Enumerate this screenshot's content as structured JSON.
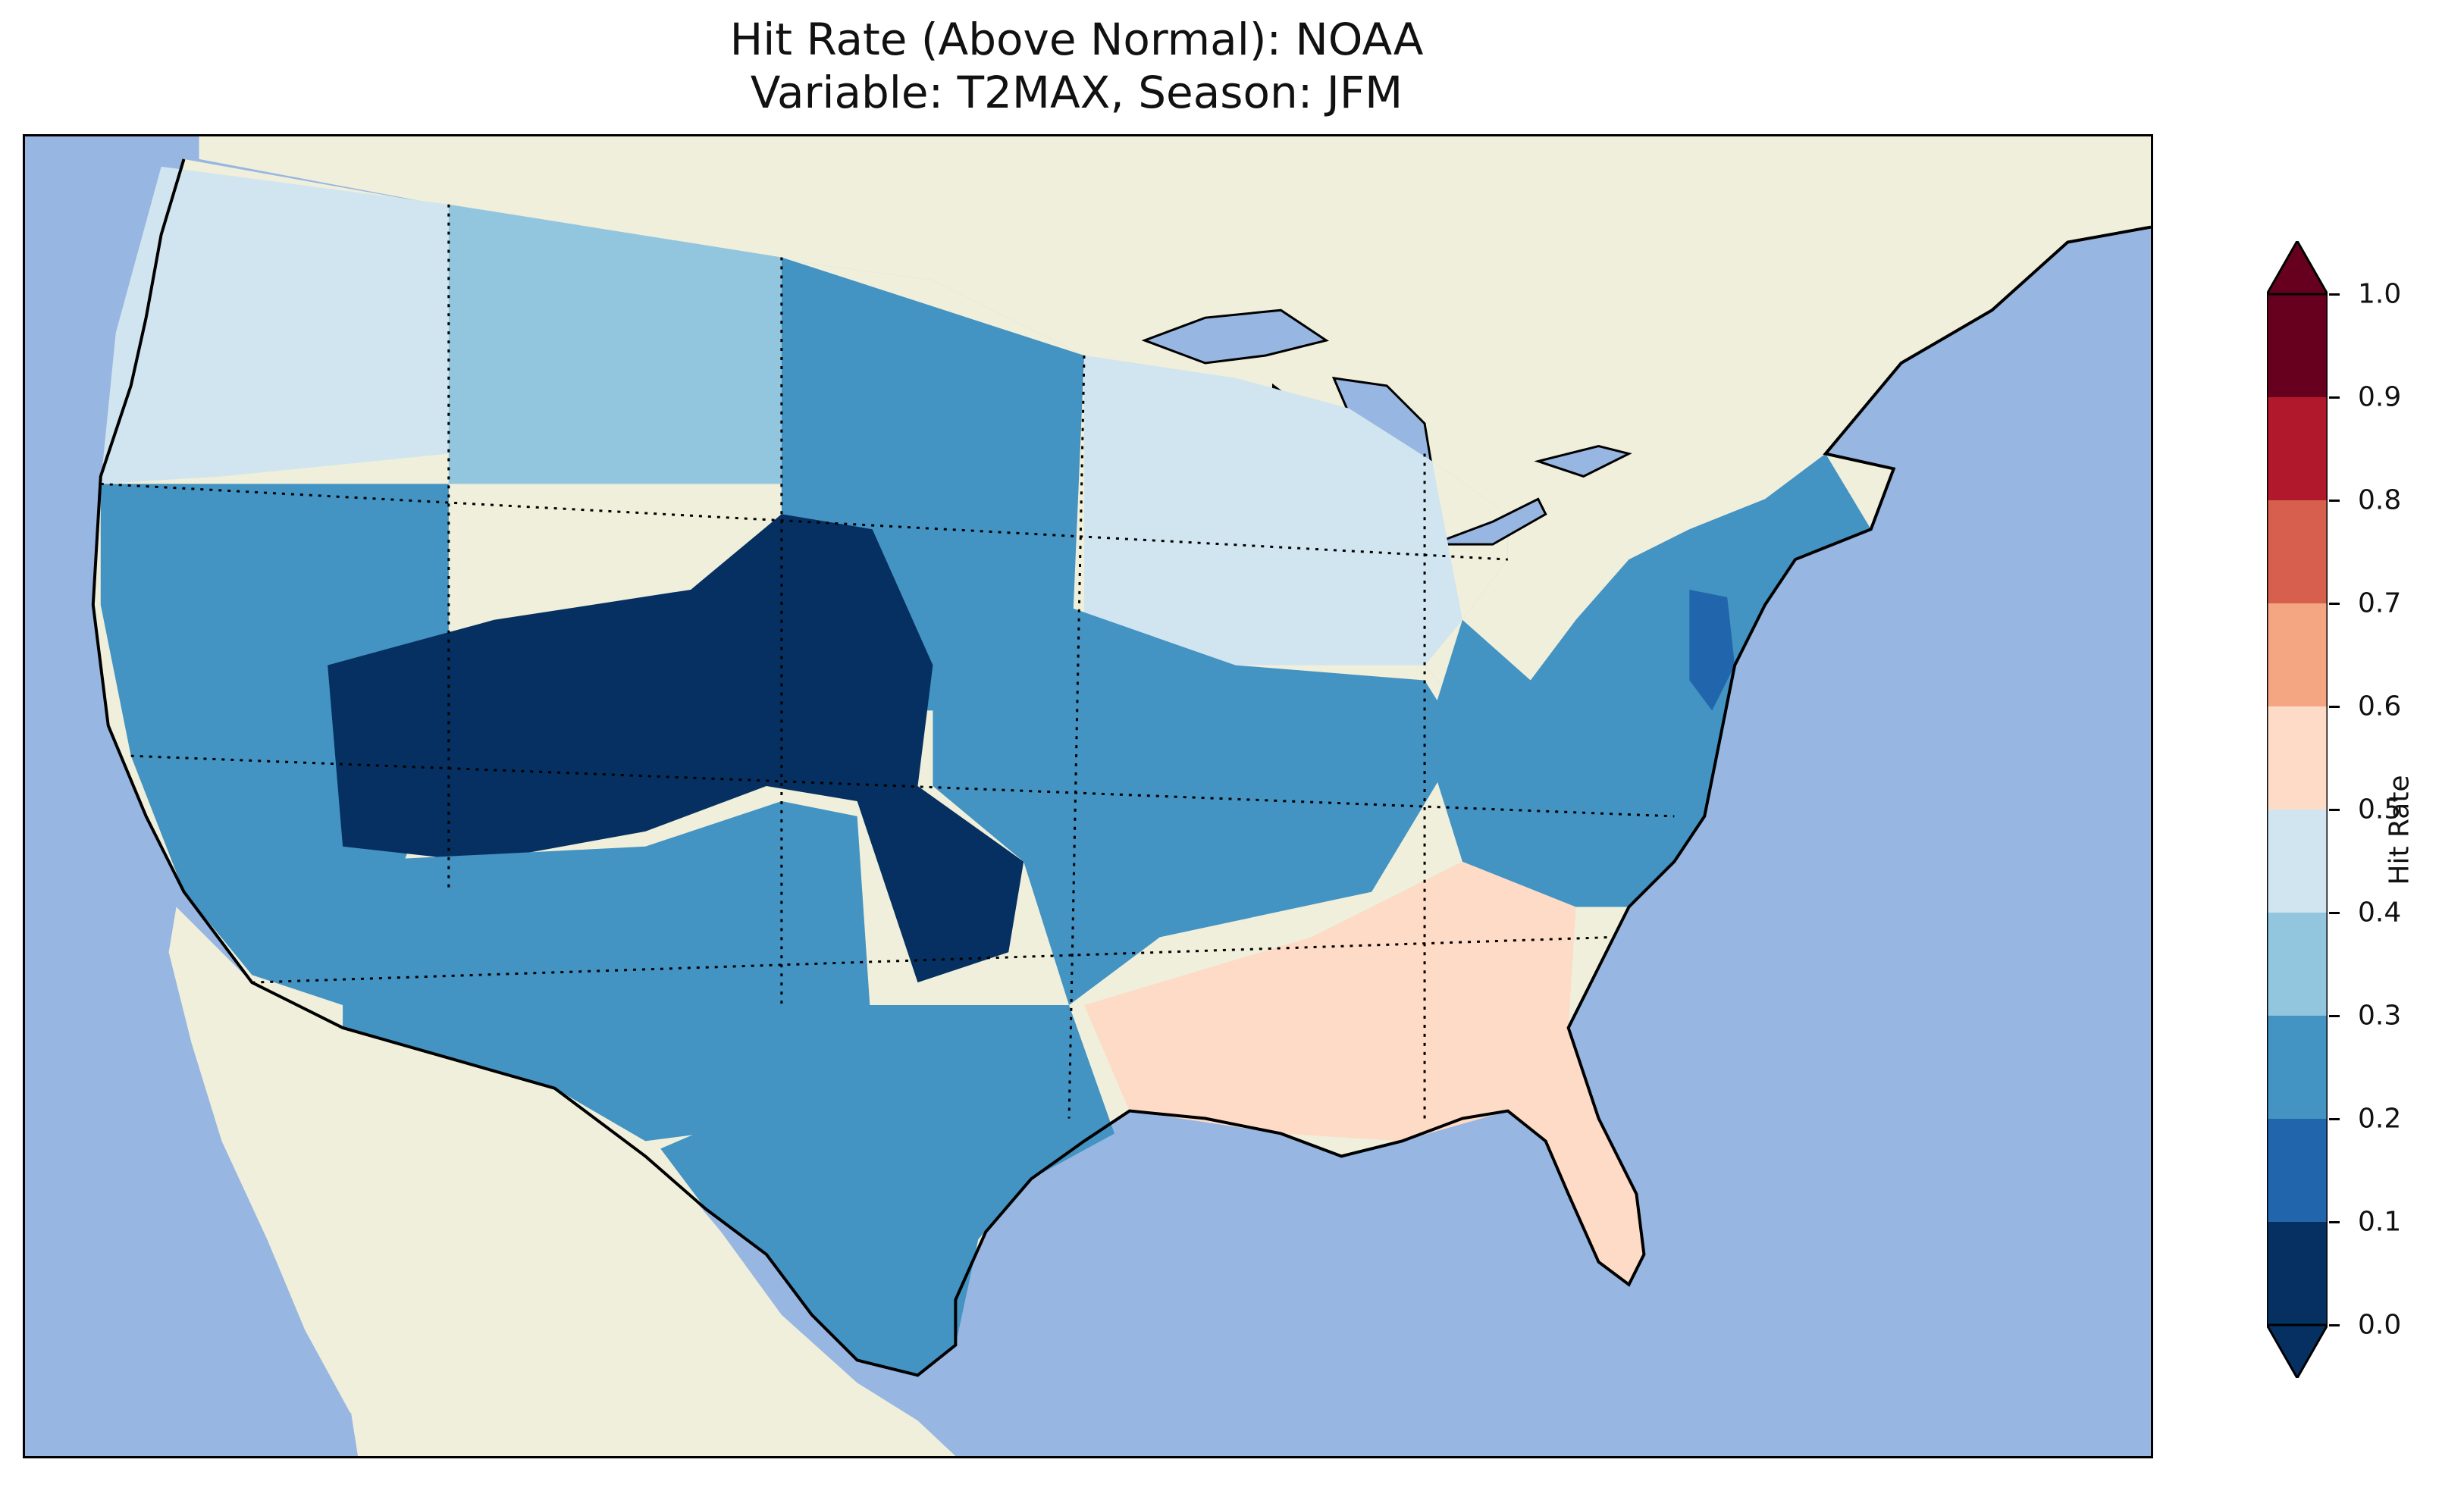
{
  "title": {
    "line1": "Hit Rate (Above Normal): NOAA",
    "line2": "Variable: T2MAX, Season: JFM"
  },
  "colors": {
    "ocean": "#97b6e1",
    "land": "#efefdb",
    "lakes": "#97b6e1"
  },
  "colorbar": {
    "label": "Hit Rate",
    "extend": "both",
    "bins": [
      {
        "from": 0.0,
        "to": 0.1,
        "color": "#053061"
      },
      {
        "from": 0.1,
        "to": 0.2,
        "color": "#2166ac"
      },
      {
        "from": 0.2,
        "to": 0.3,
        "color": "#4393c3"
      },
      {
        "from": 0.3,
        "to": 0.4,
        "color": "#92c5de"
      },
      {
        "from": 0.4,
        "to": 0.5,
        "color": "#d1e5f0"
      },
      {
        "from": 0.5,
        "to": 0.6,
        "color": "#fddbc7"
      },
      {
        "from": 0.6,
        "to": 0.7,
        "color": "#f4a582"
      },
      {
        "from": 0.7,
        "to": 0.8,
        "color": "#d6604d"
      },
      {
        "from": 0.8,
        "to": 0.9,
        "color": "#b2182b"
      },
      {
        "from": 0.9,
        "to": 1.0,
        "color": "#67001f"
      }
    ],
    "ticks": [
      "0.0",
      "0.1",
      "0.2",
      "0.3",
      "0.4",
      "0.5",
      "0.6",
      "0.7",
      "0.8",
      "0.9",
      "1.0"
    ]
  },
  "regions": [
    {
      "name": "Pacific Northwest coast",
      "value": 0.45
    },
    {
      "name": "Northern Rockies",
      "value": 0.35
    },
    {
      "name": "Northern Plains",
      "value": 0.25
    },
    {
      "name": "California and Great Basin",
      "value": 0.25
    },
    {
      "name": "Utah, Colorado and Wyoming core",
      "value": 0.05
    },
    {
      "name": "Southwest",
      "value": 0.25
    },
    {
      "name": "Texas",
      "value": 0.25
    },
    {
      "name": "Upper Midwest",
      "value": 0.45
    },
    {
      "name": "Central Plains and Midwest",
      "value": 0.25
    },
    {
      "name": "Deep South",
      "value": 0.55
    },
    {
      "name": "Florida peninsula",
      "value": 0.55
    },
    {
      "name": "Northeast",
      "value": 0.25
    },
    {
      "name": "New Jersey coast",
      "value": 0.15
    }
  ]
}
